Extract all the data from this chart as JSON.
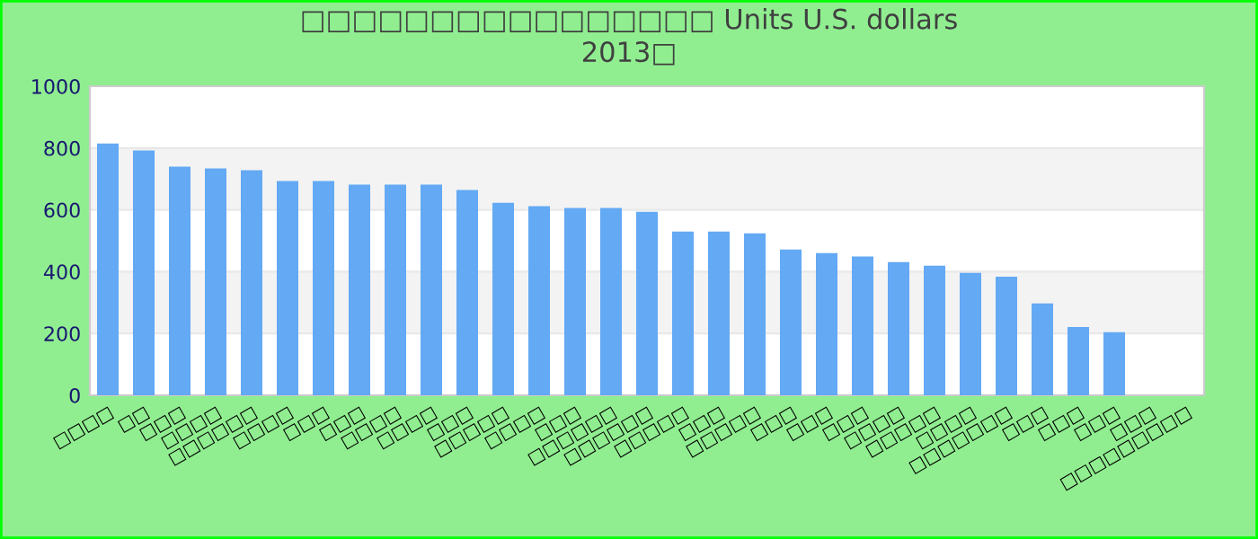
{
  "chart_data": {
    "type": "bar",
    "title": "□□□□□□□□□□□□□□□□ Units U.S. dollars\n2013□",
    "categories": [
      "□□□□",
      "□□",
      "□□□",
      "□□□□",
      "□□□□□□",
      "□□□□",
      "□□□",
      "□□□",
      "□□□□",
      "□□□□",
      "□□□",
      "□□□□□",
      "□□□□",
      "□□□",
      "□□□□□□",
      "□□□□□□",
      "□□□□□",
      "□□□",
      "□□□□□",
      "□□□",
      "□□□",
      "□□□",
      "□□□□",
      "□□□□□",
      "□□□□",
      "□□□□□□□",
      "□□□",
      "□□□",
      "□□□",
      "□□□",
      "□□□□□□□□□"
    ],
    "values": [
      815,
      792,
      740,
      734,
      728,
      693,
      693,
      682,
      682,
      682,
      664,
      623,
      612,
      606,
      606,
      594,
      530,
      530,
      524,
      472,
      460,
      449,
      431,
      419,
      396,
      384,
      297,
      221,
      204,
      null,
      null
    ],
    "color": "#63a9f4",
    "ylim": [
      0,
      1000
    ],
    "yticks": [
      0,
      200,
      400,
      600,
      800,
      1000
    ],
    "grid": "y"
  }
}
